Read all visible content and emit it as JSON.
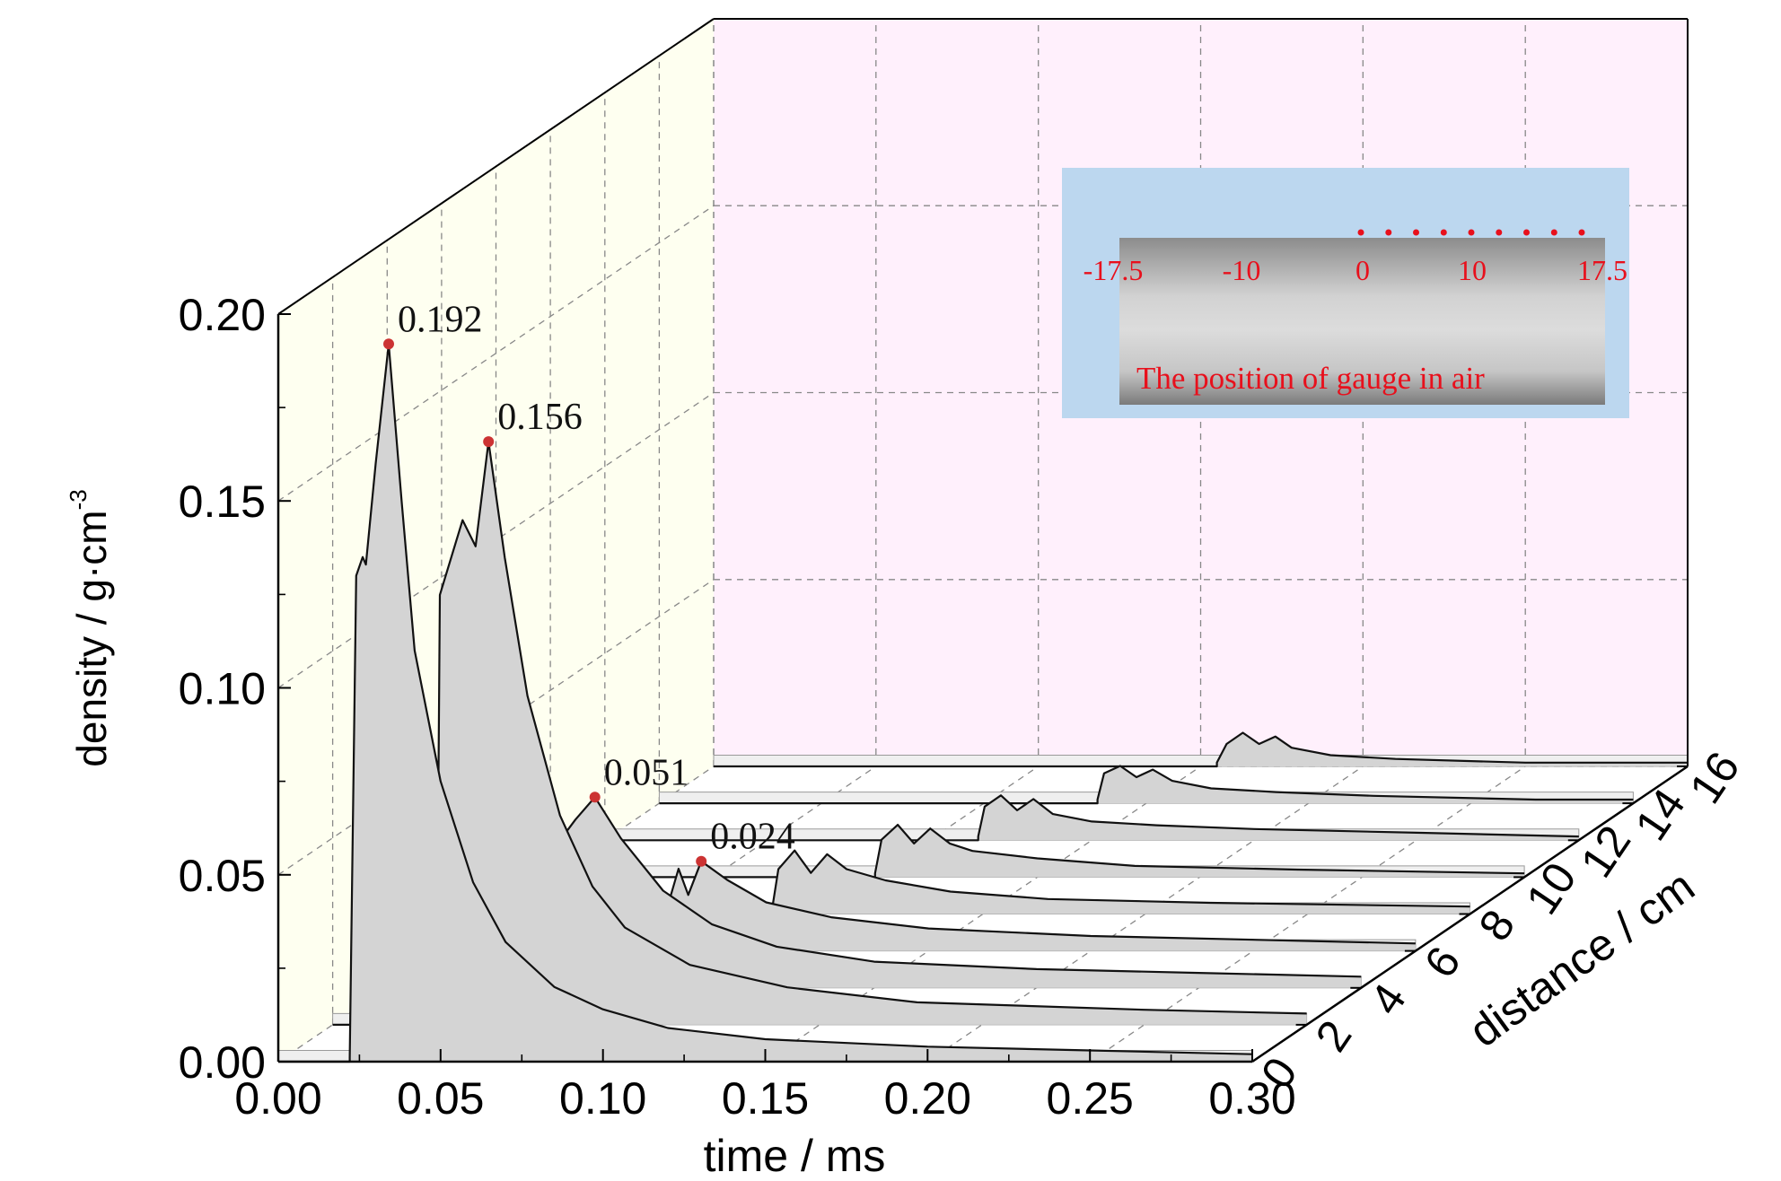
{
  "chart_data": {
    "type": "area",
    "title": "",
    "xlabel": "time / ms",
    "ylabel": "density / g·cm",
    "ylabel_sup": "-3",
    "zlabel": "distance / cm",
    "xlim": [
      0,
      0.3
    ],
    "ylim": [
      0,
      0.2
    ],
    "zlim": [
      0,
      16
    ],
    "x_ticks": [
      "0.00",
      "0.05",
      "0.10",
      "0.15",
      "0.20",
      "0.25",
      "0.30"
    ],
    "y_ticks": [
      "0.00",
      "0.05",
      "0.10",
      "0.15",
      "0.20"
    ],
    "z_ticks": [
      "0",
      "2",
      "4",
      "6",
      "8",
      "10",
      "12",
      "14",
      "16"
    ],
    "grid": true,
    "colors": {
      "side_wall": "#fefff0",
      "back_wall": "#fff0fc",
      "waterfall_fill": "#d4d4d4",
      "baseline_fill": "#efefef",
      "line": "#111111",
      "peak_marker": "#cc3333",
      "grid": "#888888"
    },
    "series": [
      {
        "distance": 0,
        "onset": 0.022,
        "points": [
          [
            0.022,
            0.001
          ],
          [
            0.024,
            0.13
          ],
          [
            0.026,
            0.135
          ],
          [
            0.027,
            0.133
          ],
          [
            0.03,
            0.16
          ],
          [
            0.034,
            0.192
          ],
          [
            0.038,
            0.15
          ],
          [
            0.042,
            0.11
          ],
          [
            0.05,
            0.075
          ],
          [
            0.06,
            0.048
          ],
          [
            0.07,
            0.032
          ],
          [
            0.085,
            0.02
          ],
          [
            0.1,
            0.014
          ],
          [
            0.12,
            0.009
          ],
          [
            0.15,
            0.006
          ],
          [
            0.2,
            0.004
          ],
          [
            0.25,
            0.003
          ],
          [
            0.3,
            0.002
          ]
        ]
      },
      {
        "distance": 2,
        "onset": 0.032,
        "points": [
          [
            0.032,
            0.001
          ],
          [
            0.033,
            0.115
          ],
          [
            0.04,
            0.135
          ],
          [
            0.044,
            0.128
          ],
          [
            0.048,
            0.156
          ],
          [
            0.053,
            0.125
          ],
          [
            0.06,
            0.088
          ],
          [
            0.07,
            0.056
          ],
          [
            0.08,
            0.037
          ],
          [
            0.09,
            0.026
          ],
          [
            0.11,
            0.016
          ],
          [
            0.14,
            0.01
          ],
          [
            0.18,
            0.006
          ],
          [
            0.25,
            0.004
          ],
          [
            0.3,
            0.003
          ]
        ]
      },
      {
        "distance": 4,
        "onset": 0.05,
        "points": [
          [
            0.05,
            0.001
          ],
          [
            0.052,
            0.038
          ],
          [
            0.058,
            0.045
          ],
          [
            0.064,
            0.051
          ],
          [
            0.072,
            0.04
          ],
          [
            0.085,
            0.026
          ],
          [
            0.1,
            0.017
          ],
          [
            0.12,
            0.011
          ],
          [
            0.15,
            0.007
          ],
          [
            0.2,
            0.005
          ],
          [
            0.25,
            0.004
          ],
          [
            0.3,
            0.003
          ]
        ]
      },
      {
        "distance": 6,
        "onset": 0.064,
        "points": [
          [
            0.064,
            0.001
          ],
          [
            0.066,
            0.016
          ],
          [
            0.07,
            0.013
          ],
          [
            0.073,
            0.022
          ],
          [
            0.076,
            0.015
          ],
          [
            0.08,
            0.024
          ],
          [
            0.088,
            0.019
          ],
          [
            0.1,
            0.013
          ],
          [
            0.12,
            0.009
          ],
          [
            0.15,
            0.006
          ],
          [
            0.2,
            0.004
          ],
          [
            0.3,
            0.002
          ]
        ]
      },
      {
        "distance": 8,
        "onset": 0.085,
        "points": [
          [
            0.085,
            0.001
          ],
          [
            0.087,
            0.012
          ],
          [
            0.092,
            0.017
          ],
          [
            0.097,
            0.011
          ],
          [
            0.102,
            0.016
          ],
          [
            0.108,
            0.012
          ],
          [
            0.12,
            0.009
          ],
          [
            0.14,
            0.006
          ],
          [
            0.17,
            0.004
          ],
          [
            0.22,
            0.003
          ],
          [
            0.3,
            0.002
          ]
        ]
      },
      {
        "distance": 10,
        "onset": 0.1,
        "points": [
          [
            0.1,
            0.001
          ],
          [
            0.102,
            0.01
          ],
          [
            0.107,
            0.014
          ],
          [
            0.112,
            0.009
          ],
          [
            0.117,
            0.013
          ],
          [
            0.123,
            0.009
          ],
          [
            0.13,
            0.007
          ],
          [
            0.15,
            0.005
          ],
          [
            0.18,
            0.003
          ],
          [
            0.23,
            0.002
          ],
          [
            0.3,
            0.001
          ]
        ]
      },
      {
        "distance": 12,
        "onset": 0.115,
        "points": [
          [
            0.115,
            0.001
          ],
          [
            0.117,
            0.009
          ],
          [
            0.122,
            0.012
          ],
          [
            0.127,
            0.008
          ],
          [
            0.132,
            0.011
          ],
          [
            0.138,
            0.007
          ],
          [
            0.15,
            0.005
          ],
          [
            0.17,
            0.004
          ],
          [
            0.2,
            0.003
          ],
          [
            0.25,
            0.002
          ],
          [
            0.3,
            0.001
          ]
        ]
      },
      {
        "distance": 14,
        "onset": 0.135,
        "points": [
          [
            0.135,
            0.001
          ],
          [
            0.137,
            0.008
          ],
          [
            0.142,
            0.01
          ],
          [
            0.147,
            0.007
          ],
          [
            0.152,
            0.009
          ],
          [
            0.158,
            0.006
          ],
          [
            0.17,
            0.004
          ],
          [
            0.19,
            0.003
          ],
          [
            0.22,
            0.002
          ],
          [
            0.27,
            0.001
          ],
          [
            0.3,
            0.001
          ]
        ]
      },
      {
        "distance": 16,
        "onset": 0.155,
        "points": [
          [
            0.155,
            0.001
          ],
          [
            0.158,
            0.006
          ],
          [
            0.163,
            0.009
          ],
          [
            0.168,
            0.006
          ],
          [
            0.173,
            0.008
          ],
          [
            0.178,
            0.005
          ],
          [
            0.19,
            0.003
          ],
          [
            0.21,
            0.002
          ],
          [
            0.25,
            0.001
          ],
          [
            0.3,
            0.001
          ]
        ]
      }
    ],
    "annotations": [
      {
        "label": "0.192",
        "distance": 0,
        "x": 0.034,
        "y": 0.192
      },
      {
        "label": "0.156",
        "distance": 2,
        "x": 0.048,
        "y": 0.156
      },
      {
        "label": "0.051",
        "distance": 4,
        "x": 0.064,
        "y": 0.051
      },
      {
        "label": "0.024",
        "distance": 6,
        "x": 0.08,
        "y": 0.024
      }
    ],
    "inset": {
      "ticks": [
        "-17.5",
        "-10",
        "0",
        "10",
        "17.5"
      ],
      "caption": "The position of gauge in air",
      "gauge_count": 9,
      "colors": {
        "panel": "#bcd7ef",
        "text": "#e8101c"
      }
    }
  }
}
